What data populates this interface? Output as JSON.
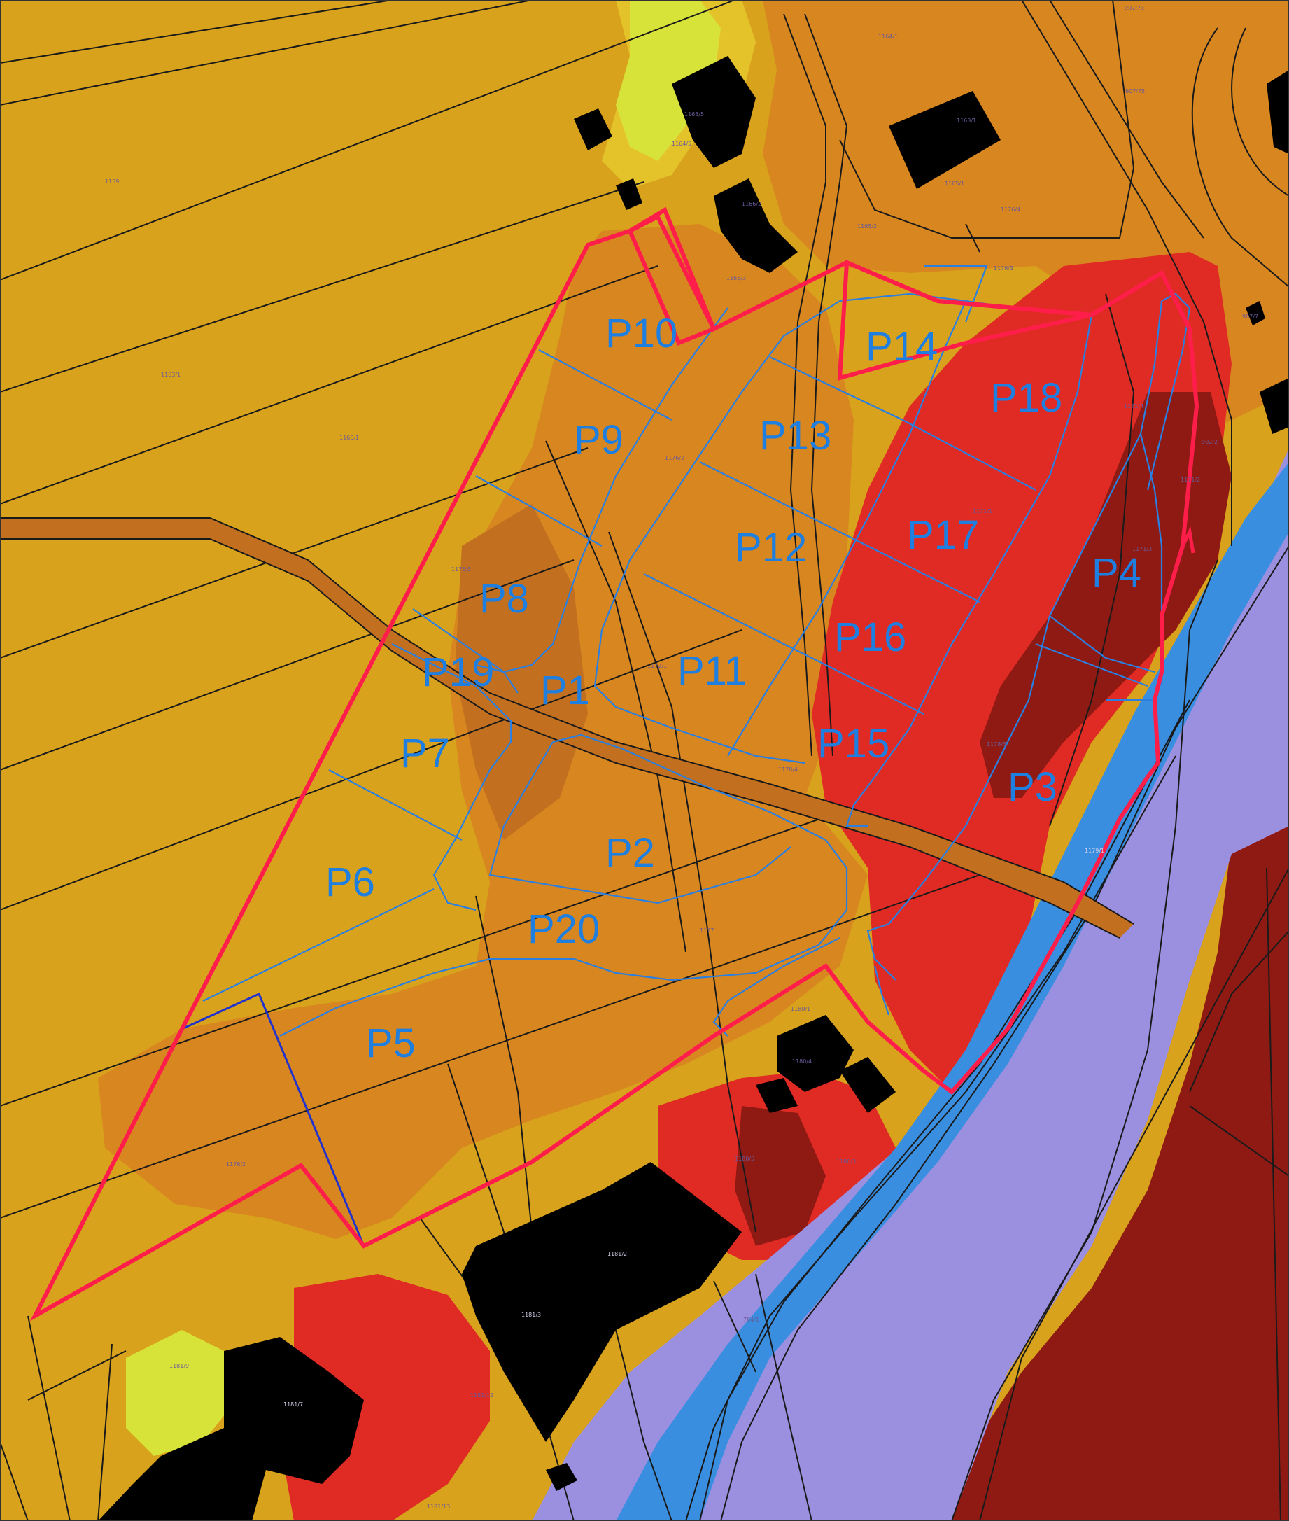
{
  "colors": {
    "yellow_zone": "#d8a21c",
    "light_yellow_zone": "#e4c22a",
    "lime_zone": "#d8e33a",
    "green_zone": "#2d8a2a",
    "orange_zone": "#d8861f",
    "dark_orange_zone": "#c2701f",
    "red_zone": "#e02a24",
    "dark_red_zone": "#8f1a14",
    "lavender_zone": "#9b8fe0",
    "river_blue": "#3a8ee0",
    "building": "#000000",
    "parcel_line": "#1a1a1a",
    "plot_outline": "#2a7fe0",
    "boundary": "#ff1e4a",
    "boundary_inner": "#2233cc"
  },
  "plots": [
    {
      "id": "p1",
      "label": "P1"
    },
    {
      "id": "p2",
      "label": "P2"
    },
    {
      "id": "p3",
      "label": "P3"
    },
    {
      "id": "p4",
      "label": "P4"
    },
    {
      "id": "p5",
      "label": "P5"
    },
    {
      "id": "p6",
      "label": "P6"
    },
    {
      "id": "p7",
      "label": "P7"
    },
    {
      "id": "p8",
      "label": "P8"
    },
    {
      "id": "p9",
      "label": "P9"
    },
    {
      "id": "p10",
      "label": "P10"
    },
    {
      "id": "p11",
      "label": "P11"
    },
    {
      "id": "p12",
      "label": "P12"
    },
    {
      "id": "p13",
      "label": "P13"
    },
    {
      "id": "p14",
      "label": "P14"
    },
    {
      "id": "p15",
      "label": "P15"
    },
    {
      "id": "p16",
      "label": "P16"
    },
    {
      "id": "p17",
      "label": "P17"
    },
    {
      "id": "p18",
      "label": "P18"
    },
    {
      "id": "p19",
      "label": "P19"
    },
    {
      "id": "p20",
      "label": "P20"
    }
  ],
  "parcel_numbers": [
    "1159",
    "1163/1",
    "1166/1",
    "1163/5",
    "1164/5",
    "1166/2",
    "1166/3",
    "1164/1",
    "1163/1",
    "1165/1",
    "1176/4",
    "1176/3",
    "1165/2",
    "907/73",
    "907/75",
    "907/7",
    "902/2",
    "1171/4",
    "1171/2",
    "1171/3",
    "1171/1",
    "1176/5",
    "1176/2",
    "1172/1",
    "1178/4",
    "1178/3",
    "1177",
    "1179/1",
    "1180/5",
    "1180/4",
    "1180/3",
    "1181/2",
    "1181/3",
    "1181/7",
    "1181/9",
    "1181/12",
    "1181/13",
    "784/1",
    "1180/1",
    "1176/2"
  ]
}
